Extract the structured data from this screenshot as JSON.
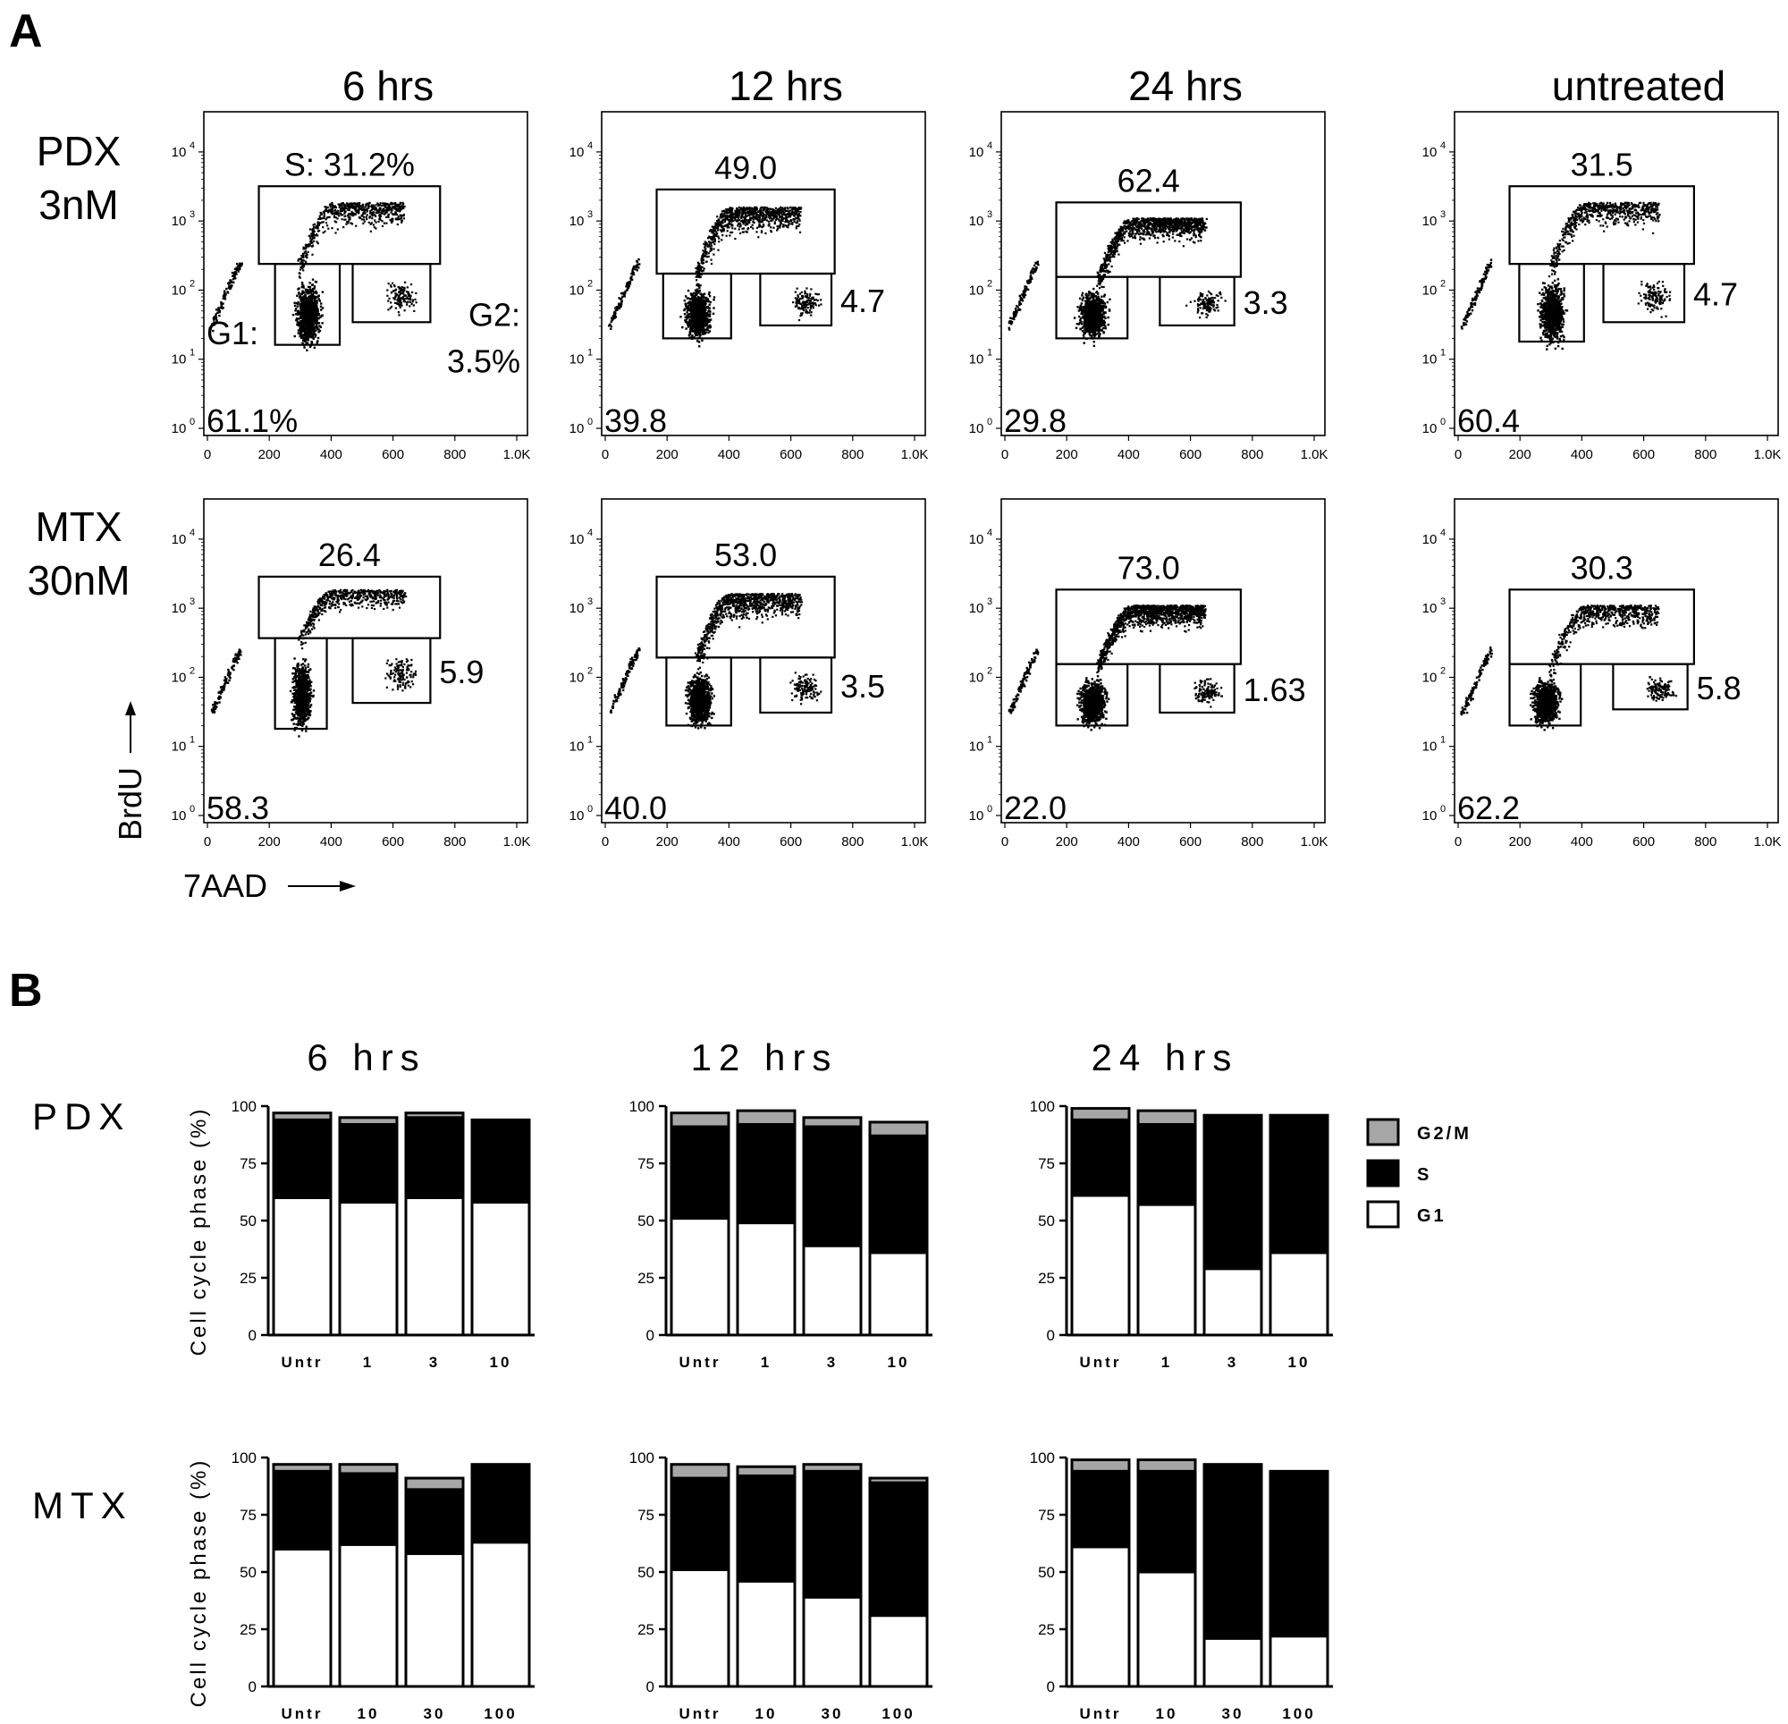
{
  "panel_a_letter": "A",
  "panel_b_letter": "B",
  "panel_a": {
    "columns": [
      "6 hrs",
      "12 hrs",
      "24 hrs",
      "untreated"
    ],
    "rows": [
      {
        "label_line1": "PDX",
        "label_line2": "3nM"
      },
      {
        "label_line1": "MTX",
        "label_line2": "30nM"
      }
    ],
    "x_axis_label": "7AAD",
    "y_axis_label": "BrdU",
    "x_ticks": [
      "0",
      "200",
      "400",
      "600",
      "800",
      "1.0K"
    ],
    "y_ticks": [
      "0",
      "1",
      "2",
      "3",
      "4"
    ],
    "y_tick_base": "10",
    "gates": [
      [
        {
          "s": "S: 31.2%",
          "g1_line1": "G1:",
          "g1_line2": "61.1%",
          "g2_line1": "G2:",
          "g2_line2": "3.5%"
        },
        {
          "s": "49.0",
          "g1": "39.8",
          "g2": "4.7"
        },
        {
          "s": "62.4",
          "g1": "29.8",
          "g2": "3.3"
        },
        {
          "s": "31.5",
          "g1": "60.4",
          "g2": "4.7"
        }
      ],
      [
        {
          "s": "26.4",
          "g1": "58.3",
          "g2": "5.9"
        },
        {
          "s": "53.0",
          "g1": "40.0",
          "g2": "3.5"
        },
        {
          "s": "73.0",
          "g1": "22.0",
          "g2": "1.63"
        },
        {
          "s": "30.3",
          "g1": "62.2",
          "g2": "5.8"
        }
      ]
    ]
  },
  "panel_b": {
    "columns": [
      "6 hrs",
      "12 hrs",
      "24 hrs"
    ],
    "rows": [
      "PDX",
      "MTX"
    ],
    "y_axis_label": "Cell cycle phase (%)",
    "y_ticks": [
      "0",
      "25",
      "50",
      "75",
      "100"
    ],
    "legend": [
      {
        "name": "G2/M",
        "color": "#a6a6a6"
      },
      {
        "name": "S",
        "color": "#000000"
      },
      {
        "name": "G1",
        "color": "#ffffff"
      }
    ]
  },
  "chart_data": {
    "type": "bar",
    "stacked": true,
    "ylabel": "Cell cycle phase (%)",
    "ylim": [
      0,
      100
    ],
    "series_names": [
      "G1",
      "S",
      "G2/M"
    ],
    "panels": [
      {
        "row": "PDX",
        "column": "6 hrs",
        "categories": [
          "Untr",
          "1",
          "3",
          "10"
        ],
        "G1": [
          60,
          58,
          60,
          58
        ],
        "S": [
          34,
          34,
          35,
          35
        ],
        "G2/M": [
          3,
          3,
          2,
          1
        ]
      },
      {
        "row": "PDX",
        "column": "12 hrs",
        "categories": [
          "Untr",
          "1",
          "3",
          "10"
        ],
        "G1": [
          51,
          49,
          39,
          36
        ],
        "S": [
          40,
          43,
          52,
          51
        ],
        "G2/M": [
          6,
          6,
          4,
          6
        ]
      },
      {
        "row": "PDX",
        "column": "24 hrs",
        "categories": [
          "Untr",
          "1",
          "3",
          "10"
        ],
        "G1": [
          61,
          57,
          29,
          36
        ],
        "S": [
          33,
          35,
          66,
          60
        ],
        "G2/M": [
          5,
          6,
          1,
          0
        ]
      },
      {
        "row": "MTX",
        "column": "6 hrs",
        "categories": [
          "Untr",
          "10",
          "30",
          "100"
        ],
        "G1": [
          60,
          62,
          58,
          63
        ],
        "S": [
          34,
          31,
          28,
          34
        ],
        "G2/M": [
          3,
          4,
          5,
          0
        ]
      },
      {
        "row": "MTX",
        "column": "12 hrs",
        "categories": [
          "Untr",
          "10",
          "30",
          "100"
        ],
        "G1": [
          51,
          46,
          39,
          31
        ],
        "S": [
          40,
          46,
          55,
          58
        ],
        "G2/M": [
          6,
          4,
          3,
          2
        ]
      },
      {
        "row": "MTX",
        "column": "24 hrs",
        "categories": [
          "Untr",
          "10",
          "30",
          "100"
        ],
        "G1": [
          61,
          50,
          21,
          22
        ],
        "S": [
          33,
          44,
          76,
          72
        ],
        "G2/M": [
          5,
          5,
          0,
          0
        ]
      }
    ]
  }
}
